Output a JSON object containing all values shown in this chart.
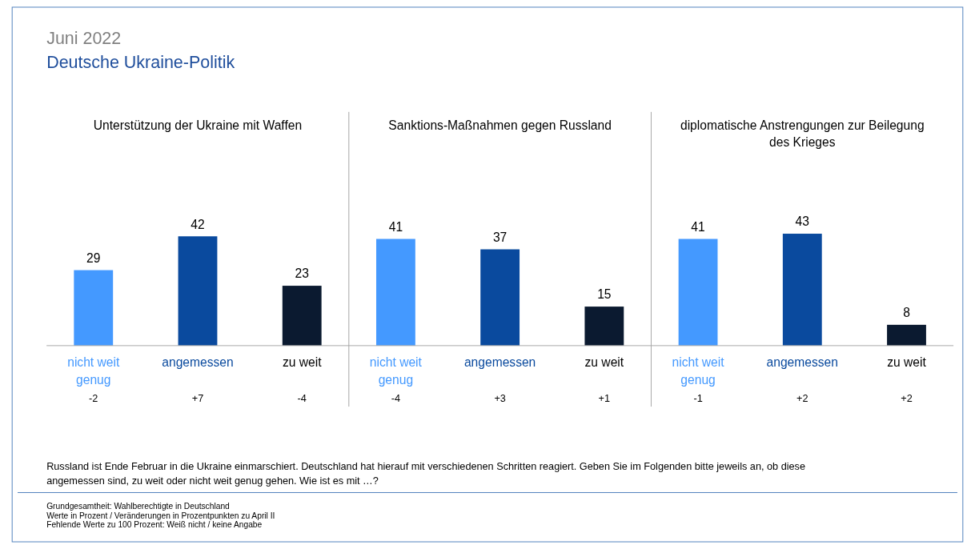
{
  "chart_data": [
    {
      "type": "other",
      "title": "Juni 2022",
      "subtitle": "Deutsche Ukraine-Politik",
      "annotations": [
        "Russland ist Ende Februar in die Ukraine einmarschiert. Deutschland hat hierauf mit verschiedenen Schritten reagiert. Geben Sie im Folgenden bitte jeweils an, ob diese angemessen sind, zu weit oder nicht weit genug gehen. Wie ist es mit …?",
        "Grundgesamtheit: Wahlberechtigte in Deutschland",
        "Werte in Prozent / Veränderungen in Prozentpunkten zu April II",
        "Fehlende Werte zu 100 Prozent: Weiß nicht / keine Angabe"
      ]
    },
    {
      "type": "bar",
      "title": "Unterstützung der Ukraine mit Waffen",
      "categories": [
        "nicht weit genug",
        "angemessen",
        "zu weit"
      ],
      "values": [
        29,
        42,
        23
      ],
      "colors": [
        "#4499ff",
        "#0a4a9e",
        "#0b1a30"
      ],
      "data_labels": true,
      "annotations": [
        "-2",
        "+7",
        "-4"
      ]
    },
    {
      "type": "bar",
      "title": "Sanktions-Maßnahmen gegen Russland",
      "categories": [
        "nicht weit genug",
        "angemessen",
        "zu weit"
      ],
      "values": [
        41,
        37,
        15
      ],
      "colors": [
        "#4499ff",
        "#0a4a9e",
        "#0b1a30"
      ],
      "data_labels": true,
      "annotations": [
        "-4",
        "+3",
        "+1"
      ]
    },
    {
      "type": "bar",
      "title": "diplomatische Anstrengungen zur Beilegung des Krieges",
      "categories": [
        "nicht weit genug",
        "angemessen",
        "zu weit"
      ],
      "values": [
        41,
        43,
        8
      ],
      "colors": [
        "#4499ff",
        "#0a4a9e",
        "#0b1a30"
      ],
      "data_labels": true,
      "annotations": [
        "-1",
        "+2",
        "+2"
      ]
    }
  ]
}
